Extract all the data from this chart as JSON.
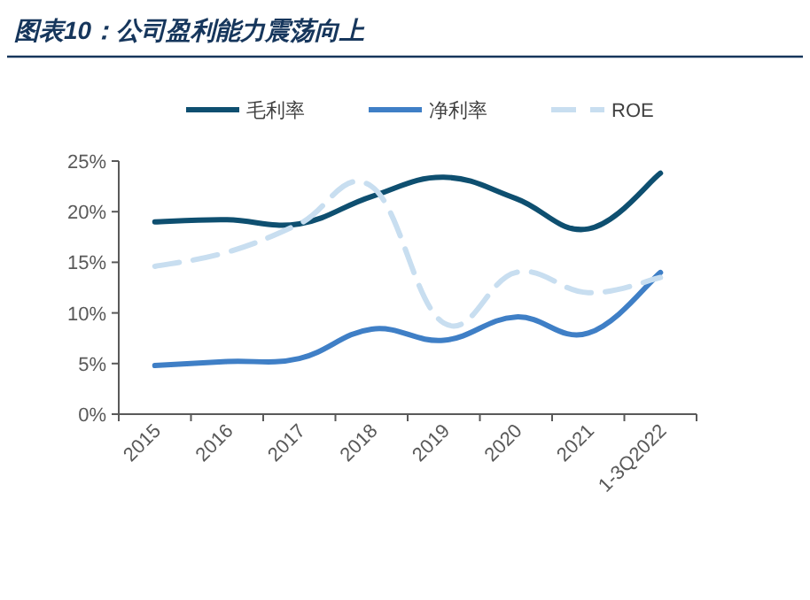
{
  "chart_data": {
    "type": "line",
    "title": "图表10：公司盈利能力震荡向上",
    "categories": [
      "2015",
      "2016",
      "2017",
      "2018",
      "2019",
      "2020",
      "2021",
      "1-3Q2022"
    ],
    "series": [
      {
        "name": "毛利率",
        "color": "#0e4f70",
        "values": [
          19.0,
          19.2,
          18.8,
          21.5,
          23.4,
          21.3,
          18.3,
          23.8
        ]
      },
      {
        "name": "净利率",
        "color": "#3f7fc6",
        "values": [
          4.8,
          5.2,
          5.5,
          8.4,
          7.3,
          9.6,
          8.0,
          14.0
        ]
      },
      {
        "name": "ROE",
        "color": "#c8def0",
        "line_style": "dashed",
        "values": [
          14.6,
          16.0,
          18.8,
          22.5,
          9.0,
          14.0,
          12.0,
          13.5
        ]
      }
    ],
    "ylim": [
      0,
      25
    ],
    "yticks": [
      {
        "value": 0,
        "label": "0%"
      },
      {
        "value": 5,
        "label": "5%"
      },
      {
        "value": 10,
        "label": "10%"
      },
      {
        "value": 15,
        "label": "15%"
      },
      {
        "value": 20,
        "label": "20%"
      },
      {
        "value": 25,
        "label": "25%"
      }
    ],
    "grid": false,
    "legend": "top",
    "marker": "none"
  }
}
